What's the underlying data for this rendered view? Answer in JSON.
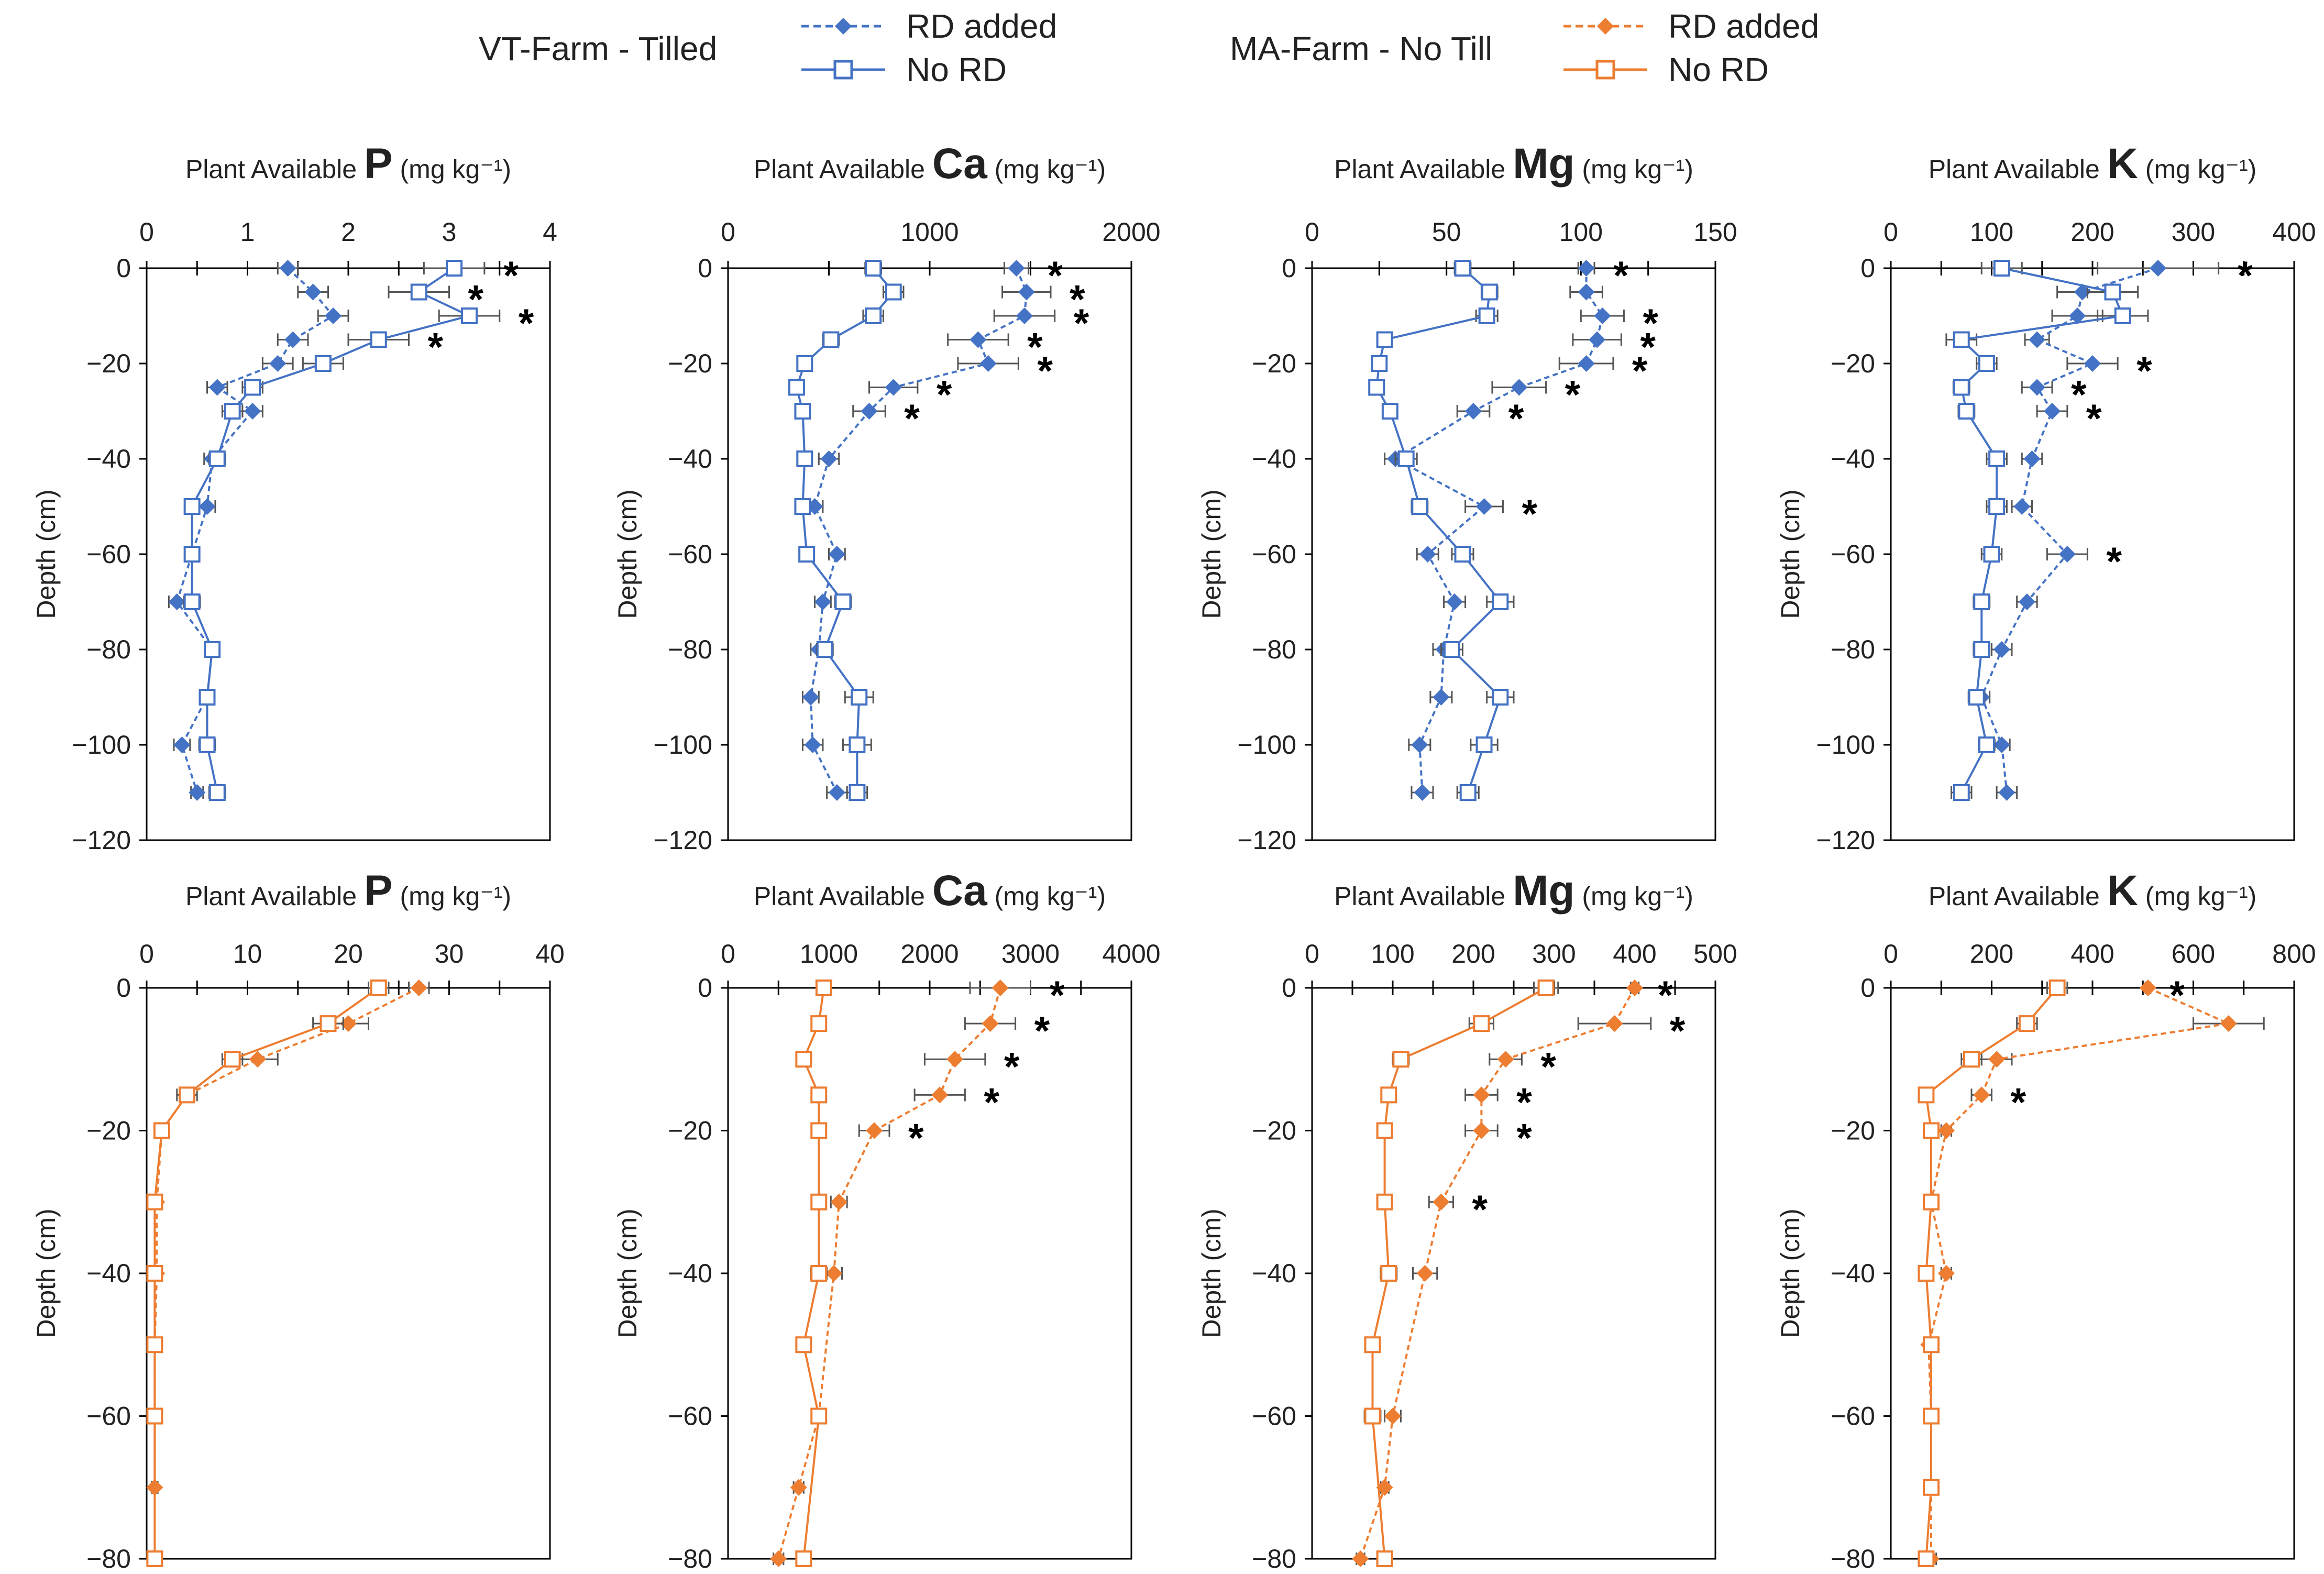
{
  "legend": {
    "vt_farm": "VT-Farm - Tilled",
    "ma_farm": "MA-Farm - No Till",
    "rd_added": "RD added",
    "no_rd": "No RD"
  },
  "colors": {
    "vt": "#4472C4",
    "ma": "#ED7D31",
    "axis": "#000000"
  },
  "chart_data": [
    {
      "type": "line",
      "farm": "VT",
      "title_prefix": "Plant Available",
      "element": "P",
      "unit": "(mg kg⁻¹)",
      "ylabel": "Depth (cm)",
      "xlim": [
        0,
        4
      ],
      "xticks": [
        0,
        1,
        2,
        3,
        4
      ],
      "ylim": [
        -120,
        0
      ],
      "yticks": [
        0,
        -20,
        -40,
        -60,
        -80,
        -100,
        -120
      ],
      "series": [
        {
          "name": "RD added",
          "x": [
            1.4,
            1.65,
            1.85,
            1.45,
            1.3,
            0.7,
            1.05,
            0.65,
            0.6,
            0.45,
            0.3,
            0.65,
            0.6,
            0.35,
            0.5
          ],
          "y": [
            0,
            -5,
            -10,
            -15,
            -20,
            -25,
            -30,
            -40,
            -50,
            -60,
            -70,
            -80,
            -90,
            -100,
            -110
          ],
          "err": [
            0.1,
            0.15,
            0.15,
            0.15,
            0.15,
            0.1,
            0.1,
            0.08,
            0.08,
            0.06,
            0.08,
            0.06,
            0.06,
            0.08,
            0.06
          ]
        },
        {
          "name": "No RD",
          "x": [
            3.05,
            2.7,
            3.2,
            2.3,
            1.75,
            1.05,
            0.85,
            0.7,
            0.45,
            0.45,
            0.45,
            0.65,
            0.6,
            0.6,
            0.7
          ],
          "y": [
            0,
            -5,
            -10,
            -15,
            -20,
            -25,
            -30,
            -40,
            -50,
            -60,
            -70,
            -80,
            -90,
            -100,
            -110
          ],
          "err": [
            0.3,
            0.3,
            0.3,
            0.3,
            0.2,
            0.1,
            0.1,
            0.08,
            0.06,
            0.06,
            0.08,
            0.06,
            0.06,
            0.08,
            0.08
          ]
        }
      ],
      "significant_depths": [
        0,
        -5,
        -10,
        -15
      ]
    },
    {
      "type": "line",
      "farm": "VT",
      "title_prefix": "Plant Available",
      "element": "Ca",
      "unit": "(mg kg⁻¹)",
      "ylabel": "Depth (cm)",
      "xlim": [
        0,
        2000
      ],
      "xticks": [
        0,
        1000,
        2000
      ],
      "ylim": [
        -120,
        0
      ],
      "yticks": [
        0,
        -20,
        -40,
        -60,
        -80,
        -100,
        -120
      ],
      "series": [
        {
          "name": "RD added",
          "x": [
            1430,
            1480,
            1470,
            1240,
            1290,
            820,
            700,
            500,
            430,
            540,
            470,
            450,
            410,
            420,
            540
          ],
          "y": [
            0,
            -5,
            -10,
            -15,
            -20,
            -25,
            -30,
            -40,
            -50,
            -60,
            -70,
            -80,
            -90,
            -100,
            -110
          ],
          "err": [
            60,
            120,
            150,
            150,
            150,
            120,
            80,
            50,
            40,
            40,
            40,
            40,
            40,
            50,
            50
          ]
        },
        {
          "name": "No RD",
          "x": [
            720,
            820,
            720,
            510,
            380,
            340,
            370,
            380,
            370,
            390,
            570,
            480,
            650,
            640,
            640
          ],
          "y": [
            0,
            -5,
            -10,
            -15,
            -20,
            -25,
            -30,
            -40,
            -50,
            -60,
            -70,
            -80,
            -90,
            -100,
            -110
          ],
          "err": [
            40,
            50,
            50,
            40,
            30,
            30,
            30,
            30,
            30,
            30,
            40,
            40,
            70,
            70,
            50
          ]
        }
      ],
      "significant_depths": [
        0,
        -5,
        -10,
        -15,
        -20,
        -25,
        -30
      ]
    },
    {
      "type": "line",
      "farm": "VT",
      "title_prefix": "Plant Available",
      "element": "Mg",
      "unit": "(mg kg⁻¹)",
      "ylabel": "Depth (cm)",
      "xlim": [
        0,
        150
      ],
      "xticks": [
        0,
        50,
        100,
        150
      ],
      "ylim": [
        -120,
        0
      ],
      "yticks": [
        0,
        -20,
        -40,
        -60,
        -80,
        -100,
        -120
      ],
      "series": [
        {
          "name": "RD added",
          "x": [
            102,
            102,
            108,
            106,
            102,
            77,
            60,
            31,
            64,
            43,
            53,
            49,
            48,
            40,
            41
          ],
          "y": [
            0,
            -5,
            -10,
            -15,
            -20,
            -25,
            -30,
            -40,
            -50,
            -60,
            -70,
            -80,
            -90,
            -100,
            -110
          ],
          "err": [
            3,
            6,
            8,
            9,
            10,
            10,
            6,
            4,
            7,
            4,
            4,
            4,
            4,
            4,
            4
          ]
        },
        {
          "name": "No RD",
          "x": [
            56,
            66,
            65,
            27,
            25,
            24,
            29,
            35,
            40,
            56,
            70,
            52,
            70,
            64,
            58
          ],
          "y": [
            0,
            -5,
            -10,
            -15,
            -20,
            -25,
            -30,
            -40,
            -50,
            -60,
            -70,
            -80,
            -90,
            -100,
            -110
          ],
          "err": [
            3,
            3,
            4,
            2,
            2,
            2,
            2,
            4,
            3,
            4,
            5,
            4,
            5,
            5,
            4
          ]
        }
      ],
      "significant_depths": [
        0,
        -10,
        -15,
        -20,
        -25,
        -30,
        -50
      ]
    },
    {
      "type": "line",
      "farm": "VT",
      "title_prefix": "Plant Available",
      "element": "K",
      "unit": "(mg kg⁻¹)",
      "ylabel": "Depth (cm)",
      "xlim": [
        0,
        400
      ],
      "xticks": [
        0,
        100,
        200,
        300,
        400
      ],
      "ylim": [
        -120,
        0
      ],
      "yticks": [
        0,
        -20,
        -40,
        -60,
        -80,
        -100,
        -120
      ],
      "series": [
        {
          "name": "RD added",
          "x": [
            265,
            190,
            185,
            145,
            200,
            145,
            160,
            140,
            130,
            175,
            135,
            110,
            90,
            110,
            115
          ],
          "y": [
            0,
            -5,
            -10,
            -15,
            -20,
            -25,
            -30,
            -40,
            -50,
            -60,
            -70,
            -80,
            -90,
            -100,
            -110
          ],
          "err": [
            60,
            25,
            25,
            12,
            25,
            15,
            15,
            10,
            10,
            20,
            10,
            10,
            8,
            8,
            10
          ]
        },
        {
          "name": "No RD",
          "x": [
            110,
            220,
            230,
            70,
            95,
            70,
            75,
            105,
            105,
            100,
            90,
            90,
            85,
            95,
            70
          ],
          "y": [
            0,
            -5,
            -10,
            -15,
            -20,
            -25,
            -30,
            -40,
            -50,
            -60,
            -70,
            -80,
            -90,
            -100,
            -110
          ],
          "err": [
            20,
            25,
            25,
            15,
            10,
            8,
            8,
            10,
            10,
            10,
            8,
            8,
            8,
            8,
            10
          ]
        }
      ],
      "significant_depths": [
        0,
        -20,
        -25,
        -30,
        -60
      ]
    },
    {
      "type": "line",
      "farm": "MA",
      "title_prefix": "Plant Available",
      "element": "P",
      "unit": "(mg kg⁻¹)",
      "ylabel": "Depth (cm)",
      "xlim": [
        0,
        40
      ],
      "xticks": [
        0,
        10,
        20,
        30,
        40
      ],
      "ylim": [
        -80,
        0
      ],
      "yticks": [
        0,
        -20,
        -40,
        -60,
        -80
      ],
      "series": [
        {
          "name": "RD added",
          "x": [
            27,
            20,
            11,
            4,
            1.5,
            1,
            1,
            0.8,
            0.8,
            0.8
          ],
          "y": [
            0,
            -5,
            -10,
            -15,
            -20,
            -30,
            -40,
            -50,
            -60,
            -70
          ],
          "err": [
            1,
            2,
            2,
            1,
            0.5,
            0.3,
            0.3,
            0.3,
            0.3,
            0.3
          ]
        },
        {
          "name": "No RD",
          "x": [
            23,
            18,
            8.5,
            4,
            1.5,
            0.8,
            0.8,
            0.8,
            0.8,
            0.8
          ],
          "y": [
            0,
            -5,
            -10,
            -15,
            -20,
            -30,
            -40,
            -50,
            -60,
            -80
          ],
          "err": [
            1,
            1.5,
            1,
            0.5,
            0.3,
            0.3,
            0.3,
            0.3,
            0.3,
            0.3
          ]
        }
      ],
      "significant_depths": []
    },
    {
      "type": "line",
      "farm": "MA",
      "title_prefix": "Plant Available",
      "element": "Ca",
      "unit": "(mg kg⁻¹)",
      "ylabel": "Depth (cm)",
      "xlim": [
        0,
        4000
      ],
      "xticks": [
        0,
        1000,
        2000,
        3000,
        4000
      ],
      "ylim": [
        -80,
        0
      ],
      "yticks": [
        0,
        -20,
        -40,
        -60,
        -80
      ],
      "series": [
        {
          "name": "RD added",
          "x": [
            2700,
            2600,
            2250,
            2100,
            1450,
            1100,
            1050,
            900,
            700,
            500
          ],
          "y": [
            0,
            -5,
            -10,
            -15,
            -20,
            -30,
            -40,
            -60,
            -70,
            -80
          ],
          "err": [
            300,
            250,
            300,
            250,
            150,
            80,
            80,
            50,
            50,
            50
          ]
        },
        {
          "name": "No RD",
          "x": [
            950,
            900,
            750,
            900,
            900,
            900,
            900,
            750,
            900,
            750
          ],
          "y": [
            0,
            -5,
            -10,
            -15,
            -20,
            -30,
            -40,
            -50,
            -60,
            -80
          ],
          "err": [
            50,
            50,
            50,
            50,
            50,
            50,
            80,
            50,
            50,
            50
          ]
        }
      ],
      "significant_depths": [
        0,
        -5,
        -10,
        -15,
        -20
      ]
    },
    {
      "type": "line",
      "farm": "MA",
      "title_prefix": "Plant Available",
      "element": "Mg",
      "unit": "(mg kg⁻¹)",
      "ylabel": "Depth (cm)",
      "xlim": [
        0,
        500
      ],
      "xticks": [
        0,
        100,
        200,
        300,
        400,
        500
      ],
      "ylim": [
        -80,
        0
      ],
      "yticks": [
        0,
        -20,
        -40,
        -60,
        -80
      ],
      "series": [
        {
          "name": "RD added",
          "x": [
            400,
            375,
            240,
            210,
            210,
            160,
            140,
            100,
            90,
            60
          ],
          "y": [
            0,
            -5,
            -10,
            -15,
            -20,
            -30,
            -40,
            -60,
            -70,
            -80
          ],
          "err": [
            5,
            45,
            20,
            20,
            20,
            15,
            15,
            10,
            5,
            5
          ]
        },
        {
          "name": "No RD",
          "x": [
            290,
            210,
            110,
            95,
            90,
            90,
            95,
            75,
            75,
            90
          ],
          "y": [
            0,
            -5,
            -10,
            -15,
            -20,
            -30,
            -40,
            -50,
            -60,
            -80
          ],
          "err": [
            15,
            15,
            10,
            5,
            5,
            5,
            10,
            5,
            10,
            5
          ]
        }
      ],
      "significant_depths": [
        0,
        -5,
        -10,
        -15,
        -20,
        -30
      ]
    },
    {
      "type": "line",
      "farm": "MA",
      "title_prefix": "Plant Available",
      "element": "K",
      "unit": "(mg kg⁻¹)",
      "ylabel": "Depth (cm)",
      "xlim": [
        0,
        800
      ],
      "xticks": [
        0,
        200,
        400,
        600,
        800
      ],
      "ylim": [
        -80,
        0
      ],
      "yticks": [
        0,
        -20,
        -40,
        -60,
        -80
      ],
      "series": [
        {
          "name": "RD added",
          "x": [
            510,
            670,
            210,
            180,
            110,
            80,
            110,
            75,
            80,
            80,
            80
          ],
          "y": [
            0,
            -5,
            -10,
            -15,
            -20,
            -30,
            -40,
            -50,
            -60,
            -70,
            -80
          ],
          "err": [
            5,
            70,
            30,
            20,
            10,
            10,
            10,
            5,
            10,
            5,
            10
          ]
        },
        {
          "name": "No RD",
          "x": [
            330,
            270,
            160,
            70,
            80,
            80,
            70,
            80,
            80,
            80,
            70
          ],
          "y": [
            0,
            -5,
            -10,
            -15,
            -20,
            -30,
            -40,
            -50,
            -60,
            -70,
            -80
          ],
          "err": [
            20,
            20,
            20,
            10,
            10,
            10,
            10,
            5,
            10,
            5,
            10
          ]
        }
      ],
      "significant_depths": [
        0,
        -15
      ]
    }
  ]
}
